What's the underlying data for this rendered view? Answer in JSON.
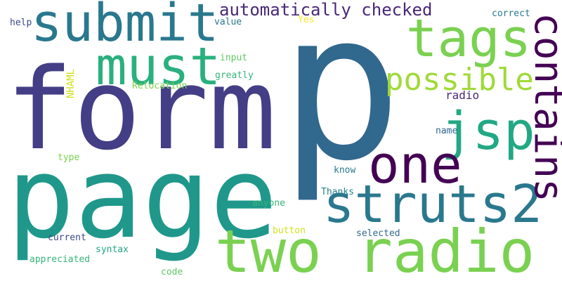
{
  "words": [
    {
      "text": "p",
      "color": "#31688e"
    },
    {
      "text": "form",
      "color": "#433e85"
    },
    {
      "text": "page",
      "color": "#1f988b"
    },
    {
      "text": "submit",
      "color": "#2a788e"
    },
    {
      "text": "two radio",
      "color": "#7ad151"
    },
    {
      "text": "tags",
      "color": "#7ad151"
    },
    {
      "text": "must",
      "color": "#2ab07f"
    },
    {
      "text": "jsp",
      "color": "#22a884"
    },
    {
      "text": "one",
      "color": "#440154"
    },
    {
      "text": "struts2",
      "color": "#2a788e"
    },
    {
      "text": "contains",
      "color": "#440154"
    },
    {
      "text": "possible",
      "color": "#a0da39"
    },
    {
      "text": "automatically checked",
      "color": "#482878"
    },
    {
      "text": "NHAML",
      "color": "#d0e11c"
    },
    {
      "text": "radio",
      "color": "#482878"
    },
    {
      "text": "help",
      "color": "#3e4989"
    },
    {
      "text": "value",
      "color": "#2a788e"
    },
    {
      "text": "Yes",
      "color": "#fde725"
    },
    {
      "text": "correct",
      "color": "#2a788e"
    },
    {
      "text": "input",
      "color": "#5ec962"
    },
    {
      "text": "greatly",
      "color": "#35b779"
    },
    {
      "text": "Relocation",
      "color": "#7ad151"
    },
    {
      "text": "name",
      "color": "#31688e"
    },
    {
      "text": "type",
      "color": "#7ad151"
    },
    {
      "text": "know",
      "color": "#2a788e"
    },
    {
      "text": "Thanks",
      "color": "#26828e"
    },
    {
      "text": "anyone",
      "color": "#35b779"
    },
    {
      "text": "button",
      "color": "#d0e11c"
    },
    {
      "text": "selected",
      "color": "#31688e"
    },
    {
      "text": "current",
      "color": "#3e4989"
    },
    {
      "text": "syntax",
      "color": "#22a884"
    },
    {
      "text": "appreciated",
      "color": "#35b779"
    },
    {
      "text": "code",
      "color": "#5ec962"
    }
  ]
}
